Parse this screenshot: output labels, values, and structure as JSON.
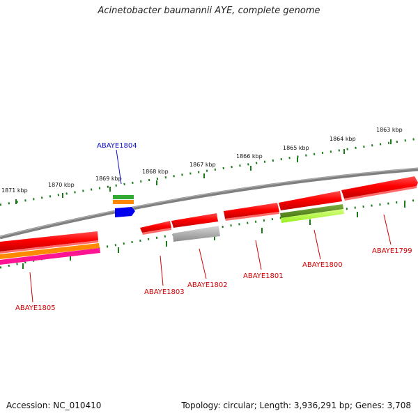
{
  "header": {
    "title": "Acinetobacter baumannii AYE, complete genome"
  },
  "footer": {
    "accession": "Accession: NC_010410",
    "topology": "Topology: circular; Length: 3,936,291 bp; Genes: 3,708"
  },
  "scale_labels": [
    "1871 kbp",
    "1870 kbp",
    "1869 kbp",
    "1868 kbp",
    "1867 kbp",
    "1866 kbp",
    "1865 kbp",
    "1864 kbp",
    "1863 kbp"
  ],
  "genes": [
    {
      "name": "ABAYE1805",
      "color": "#d00000"
    },
    {
      "name": "ABAYE1804",
      "color": "#1010c8"
    },
    {
      "name": "ABAYE1803",
      "color": "#d00000"
    },
    {
      "name": "ABAYE1802",
      "color": "#d00000"
    },
    {
      "name": "ABAYE1801",
      "color": "#d00000"
    },
    {
      "name": "ABAYE1800",
      "color": "#d00000"
    },
    {
      "name": "ABAYE1799",
      "color": "#d00000"
    }
  ],
  "colors": {
    "backbone": "#808080",
    "ticks": "#1a7a1a",
    "gene_red": "#ff0000",
    "gene_gray": "#b0b0b0",
    "gene_blue": "#0000ee",
    "gene_green": "#33aa33",
    "gene_orange": "#ff8800",
    "gene_magenta": "#ff1493",
    "gene_olive": "#5a8a1a",
    "gene_lime": "#bbff44"
  }
}
